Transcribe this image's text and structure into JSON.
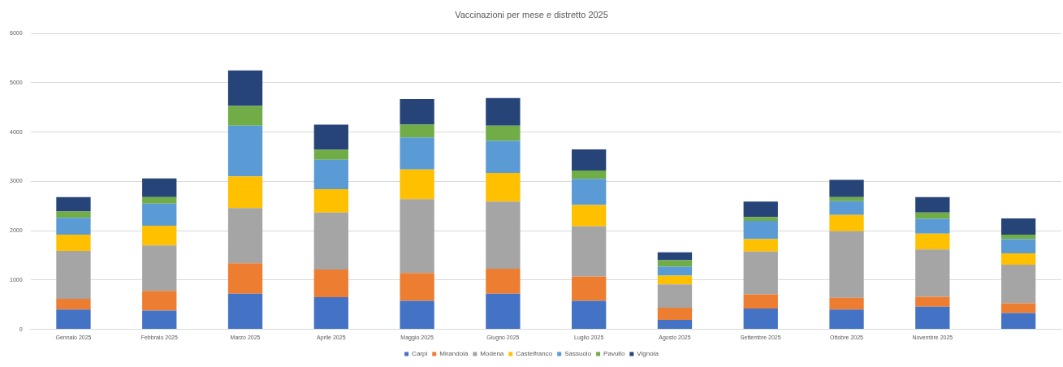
{
  "chart_data": {
    "type": "bar",
    "title": "Vaccinazioni per mese e distretto 2025",
    "stacked": true,
    "grid": "y",
    "legend": "bottom",
    "categories": [
      "Gennaio 2025",
      "Febbraio 2025",
      "Marzo 2025",
      "Aprile 2025",
      "Maggio 2025",
      "Giugno 2025",
      "Luglio 2025",
      "Agosto 2025",
      "Settembre 2025",
      "Ottobre 2025",
      "Novembre 2025",
      null
    ],
    "ylim": [
      0,
      6000
    ],
    "yticks": [
      0,
      1000,
      2000,
      3000,
      4000,
      5000,
      6000
    ],
    "series": [
      {
        "name": "Carpi",
        "color": "#4472c4",
        "values": [
          400,
          380,
          720,
          650,
          580,
          720,
          580,
          190,
          420,
          400,
          460,
          330
        ]
      },
      {
        "name": "Mirandola",
        "color": "#ed7d31",
        "values": [
          220,
          400,
          620,
          560,
          560,
          510,
          490,
          250,
          290,
          240,
          200,
          200
        ]
      },
      {
        "name": "Modena",
        "color": "#a5a5a5",
        "values": [
          970,
          920,
          1120,
          1160,
          1500,
          1360,
          1020,
          470,
          870,
          1350,
          960,
          780
        ]
      },
      {
        "name": "Castelfranco",
        "color": "#ffc000",
        "values": [
          330,
          400,
          640,
          470,
          600,
          580,
          430,
          180,
          250,
          330,
          320,
          230
        ]
      },
      {
        "name": "Sassuolo",
        "color": "#5b9bd5",
        "values": [
          340,
          450,
          1030,
          600,
          650,
          650,
          530,
          180,
          370,
          280,
          300,
          290
        ]
      },
      {
        "name": "Pavullo",
        "color": "#70ad47",
        "values": [
          130,
          130,
          400,
          200,
          260,
          310,
          170,
          130,
          80,
          80,
          130,
          90
        ]
      },
      {
        "name": "Vignola",
        "color": "#264478",
        "values": [
          290,
          380,
          720,
          510,
          520,
          560,
          430,
          160,
          310,
          350,
          310,
          330
        ]
      }
    ]
  }
}
